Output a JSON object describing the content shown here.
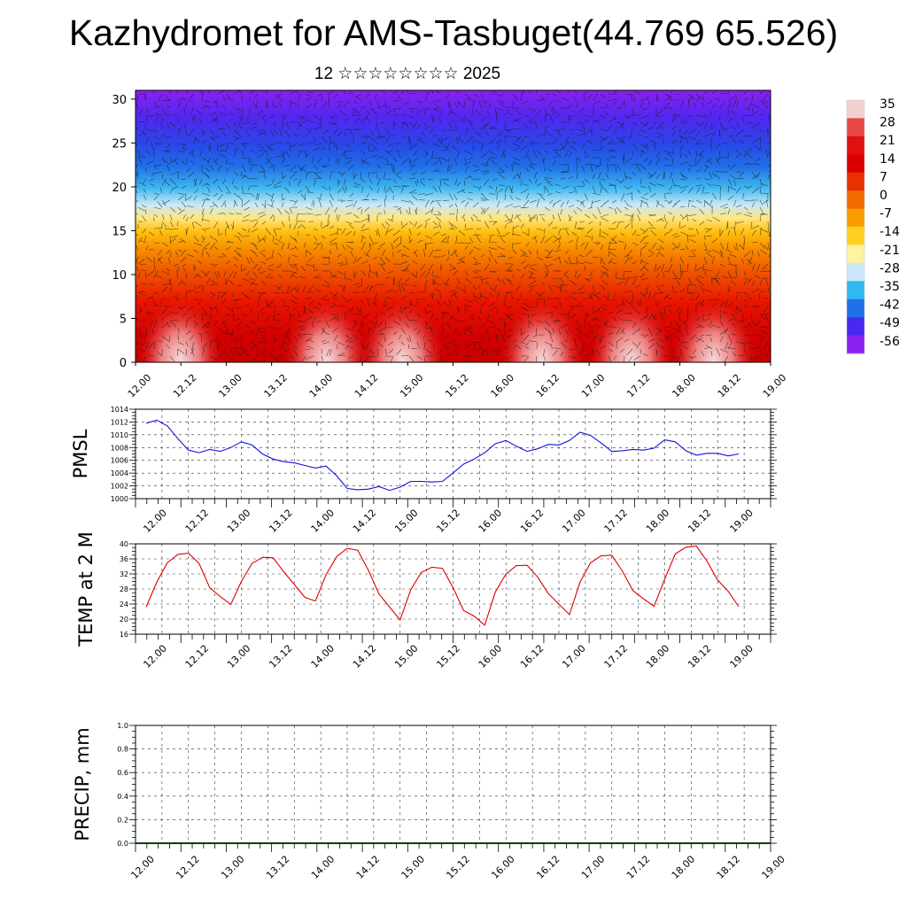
{
  "title": "Kazhydromet for AMS-Tasbuget(44.769 65.526)",
  "subtitle": "12 ☆☆☆☆☆☆☆☆ 2025",
  "time_labels": [
    "12.00",
    "12.12",
    "13.00",
    "13.12",
    "14.00",
    "14.12",
    "15.00",
    "15.12",
    "16.00",
    "16.12",
    "17.00",
    "17.12",
    "18.00",
    "18.12",
    "19.00"
  ],
  "chart_data": [
    {
      "type": "heatmap",
      "name": "vertical cross-section",
      "y_ticks": [
        0,
        5,
        10,
        15,
        20,
        25,
        30
      ],
      "ylim": [
        0,
        31
      ],
      "colorbar": {
        "labels": [
          "35",
          "28",
          "21",
          "14",
          "7",
          "0",
          "-7",
          "-14",
          "-21",
          "-28",
          "-35",
          "-42",
          "-49",
          "-56"
        ],
        "stops": [
          "#f3d0d0",
          "#e84848",
          "#e01010",
          "#d80000",
          "#e83000",
          "#f06a00",
          "#fa9e00",
          "#ffd020",
          "#fff2a0",
          "#c8e8f8",
          "#30b8f0",
          "#2070e8",
          "#4a28f0",
          "#8a20f0"
        ]
      }
    },
    {
      "type": "line",
      "ylabel": "PMSL",
      "ylim": [
        1000,
        1014
      ],
      "y_ticks": [
        1000,
        1002,
        1004,
        1006,
        1008,
        1010,
        1012,
        1014
      ],
      "color": "#1010e0",
      "x_step_hours": 3,
      "values": [
        1011.8,
        1012.3,
        1011.4,
        1009.4,
        1007.6,
        1007.2,
        1007.7,
        1007.4,
        1008.0,
        1008.9,
        1008.4,
        1007.0,
        1006.2,
        1005.8,
        1005.6,
        1005.2,
        1004.8,
        1005.1,
        1003.6,
        1001.6,
        1001.4,
        1001.5,
        1001.9,
        1001.3,
        1001.8,
        1002.7,
        1002.7,
        1002.6,
        1002.7,
        1004.0,
        1005.4,
        1006.2,
        1007.2,
        1008.6,
        1009.1,
        1008.2,
        1007.4,
        1007.8,
        1008.5,
        1008.4,
        1009.1,
        1010.4,
        1009.9,
        1008.7,
        1007.4,
        1007.5,
        1007.7,
        1007.6,
        1007.9,
        1009.2,
        1008.9,
        1007.5,
        1006.8,
        1007.1,
        1007.1,
        1006.7,
        1007.0
      ]
    },
    {
      "type": "line",
      "ylabel": "TEMP at 2 M",
      "ylim": [
        16,
        40
      ],
      "y_ticks": [
        16,
        20,
        24,
        28,
        32,
        36,
        40
      ],
      "color": "#e00000",
      "x_step_hours": 3,
      "values": [
        23.2,
        29.8,
        35.0,
        37.2,
        37.5,
        34.8,
        28.4,
        26.0,
        23.9,
        30.0,
        34.8,
        36.4,
        36.3,
        32.6,
        29.2,
        25.8,
        24.8,
        31.8,
        36.6,
        38.8,
        38.3,
        33.0,
        26.7,
        23.2,
        19.8,
        27.8,
        32.4,
        33.8,
        33.5,
        28.4,
        22.3,
        20.8,
        18.4,
        27.2,
        32.0,
        34.2,
        34.3,
        31.2,
        26.8,
        24.0,
        21.2,
        29.8,
        35.0,
        36.8,
        37.0,
        32.8,
        27.6,
        25.4,
        23.4,
        30.6,
        37.3,
        39.1,
        39.4,
        35.4,
        30.4,
        27.4,
        23.3
      ]
    },
    {
      "type": "line",
      "ylabel": "PRECIP, mm",
      "ylim": [
        0,
        1.0
      ],
      "y_ticks": [
        "0.0",
        "0.2",
        "0.4",
        "0.6",
        "0.8",
        "1.0"
      ],
      "color": "#004000",
      "values": [
        0,
        0,
        0,
        0,
        0,
        0,
        0,
        0,
        0,
        0,
        0,
        0,
        0,
        0,
        0
      ]
    }
  ]
}
